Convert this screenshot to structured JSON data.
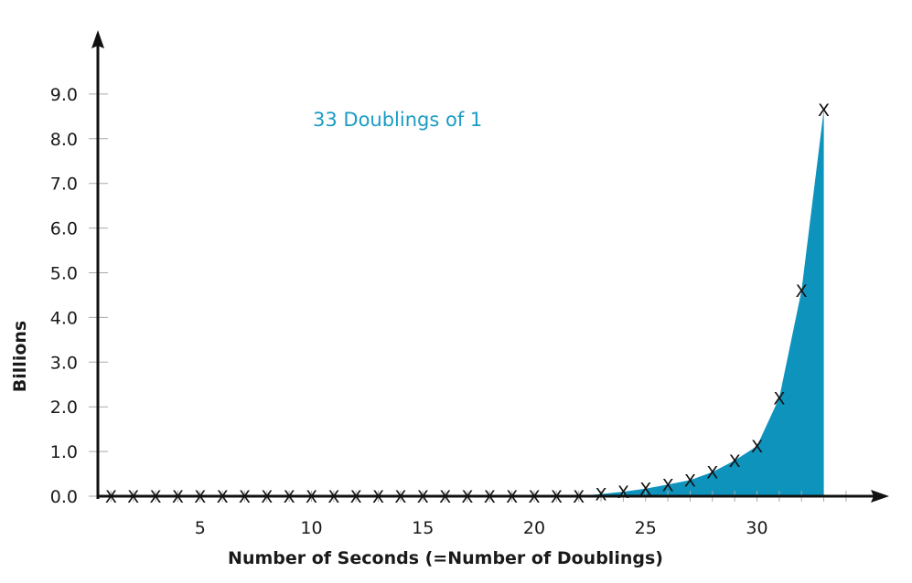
{
  "chart_data": {
    "type": "area",
    "title": "33 Doublings of 1",
    "xlabel": "Number of Seconds (=Number of Doublings)",
    "ylabel": "Billions",
    "xlim": [
      0,
      35
    ],
    "ylim": [
      0,
      9.8
    ],
    "x_ticks": [
      5,
      10,
      15,
      20,
      25,
      30
    ],
    "y_ticks": [
      "0.0",
      "1.0",
      "2.0",
      "3.0",
      "4.0",
      "5.0",
      "6.0",
      "7.0",
      "8.0",
      "9.0"
    ],
    "marker": "X",
    "grid": false,
    "series": [
      {
        "x": [
          1,
          2,
          3,
          4,
          5,
          6,
          7,
          8,
          9,
          10,
          11,
          12,
          13,
          14,
          15,
          16,
          17,
          18,
          19,
          20,
          21,
          22,
          23,
          24,
          25,
          26,
          27,
          28,
          29,
          30,
          31,
          32,
          33
        ],
        "y": [
          2.1e-09,
          4.3e-09,
          8.6e-09,
          1.7e-08,
          3.4e-08,
          6.9e-08,
          1.4e-07,
          2.7e-07,
          5.5e-07,
          1.1e-06,
          2.2e-06,
          4.4e-06,
          8.8e-06,
          1.8e-05,
          3.5e-05,
          7e-05,
          0.00014,
          0.00028,
          0.00056,
          0.0011,
          0.0022,
          0.0045,
          0.05,
          0.1,
          0.17,
          0.26,
          0.36,
          0.54,
          0.8,
          1.12,
          2.2,
          4.6,
          8.65
        ]
      }
    ],
    "colors": {
      "fill": "#0e93bd",
      "title": "#1a9cc4",
      "axis": "#111111",
      "marker": "#111111"
    }
  }
}
